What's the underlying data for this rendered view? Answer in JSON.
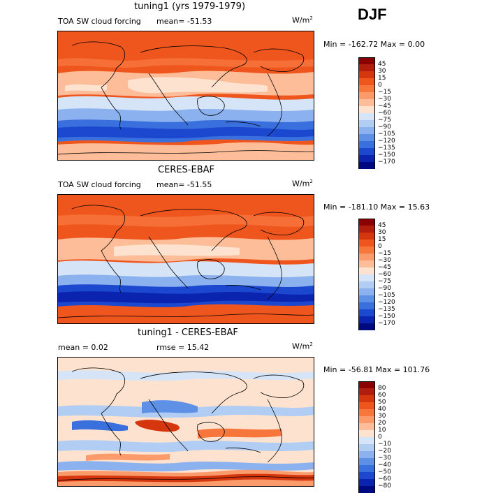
{
  "header": {
    "season": "DJF"
  },
  "panels": [
    {
      "title": "tuning1 (yrs 1979-1979)",
      "variable": "TOA SW cloud forcing",
      "stat_left": "mean= -51.53",
      "stat_right": "",
      "units": "W/m",
      "units_sup": "2",
      "minmax": "Min = -162.72 Max =    0.00",
      "legend": [
        "45",
        "30",
        "15",
        "0",
        "-15",
        "-30",
        "-45",
        "-60",
        "-75",
        "-90",
        "-105",
        "-120",
        "-135",
        "-150",
        "-170"
      ],
      "colors": [
        "#8b0000",
        "#b21e0e",
        "#d6360e",
        "#ee561e",
        "#f7763c",
        "#fb9a6a",
        "#fcbd98",
        "#fde3cf",
        "#d6e4f7",
        "#b1cdf3",
        "#8bb2ef",
        "#5e91e6",
        "#3a6fde",
        "#1c47cf",
        "#0a24b0",
        "#000a80"
      ]
    },
    {
      "title": "CERES-EBAF",
      "variable": "TOA SW cloud forcing",
      "stat_left": "mean= -51.55",
      "stat_right": "",
      "units": "W/m",
      "units_sup": "2",
      "minmax": "Min = -181.10 Max =  15.63",
      "legend": [
        "45",
        "30",
        "15",
        "0",
        "-15",
        "-30",
        "-45",
        "-60",
        "-75",
        "-90",
        "-105",
        "-120",
        "-135",
        "-150",
        "-170"
      ],
      "colors": [
        "#8b0000",
        "#b21e0e",
        "#d6360e",
        "#ee561e",
        "#f7763c",
        "#fb9a6a",
        "#fcbd98",
        "#fde3cf",
        "#d6e4f7",
        "#b1cdf3",
        "#8bb2ef",
        "#5e91e6",
        "#3a6fde",
        "#1c47cf",
        "#0a24b0",
        "#000a80"
      ]
    },
    {
      "title": "tuning1 - CERES-EBAF",
      "variable": "",
      "stat_left": "mean =    0.02",
      "stat_right": "rmse =  15.42",
      "units": "W/m",
      "units_sup": "2",
      "minmax": "Min = -56.81 Max = 101.76",
      "legend": [
        "80",
        "60",
        "50",
        "40",
        "30",
        "20",
        "10",
        "0",
        "-10",
        "-20",
        "-30",
        "-40",
        "-50",
        "-60",
        "-80"
      ],
      "colors": [
        "#8b0000",
        "#b21e0e",
        "#d6360e",
        "#ee561e",
        "#f7763c",
        "#fb9a6a",
        "#fcbd98",
        "#fde3cf",
        "#d6e4f7",
        "#b1cdf3",
        "#8bb2ef",
        "#5e91e6",
        "#3a6fde",
        "#1c47cf",
        "#0a24b0",
        "#000a80"
      ]
    }
  ],
  "chart_data": [
    {
      "type": "heatmap",
      "title": "tuning1 (yrs 1979-1979)",
      "field": "TOA SW cloud forcing",
      "units": "W/m2",
      "mean": -51.53,
      "min": -162.72,
      "max": 0.0,
      "contour_levels": [
        45,
        30,
        15,
        0,
        -15,
        -30,
        -45,
        -60,
        -75,
        -90,
        -105,
        -120,
        -135,
        -150,
        -170
      ]
    },
    {
      "type": "heatmap",
      "title": "CERES-EBAF",
      "field": "TOA SW cloud forcing",
      "units": "W/m2",
      "mean": -51.55,
      "min": -181.1,
      "max": 15.63,
      "contour_levels": [
        45,
        30,
        15,
        0,
        -15,
        -30,
        -45,
        -60,
        -75,
        -90,
        -105,
        -120,
        -135,
        -150,
        -170
      ]
    },
    {
      "type": "heatmap",
      "title": "tuning1 - CERES-EBAF",
      "units": "W/m2",
      "mean": 0.02,
      "rmse": 15.42,
      "min": -56.81,
      "max": 101.76,
      "contour_levels": [
        80,
        60,
        50,
        40,
        30,
        20,
        10,
        0,
        -10,
        -20,
        -30,
        -40,
        -50,
        -60,
        -80
      ]
    }
  ]
}
